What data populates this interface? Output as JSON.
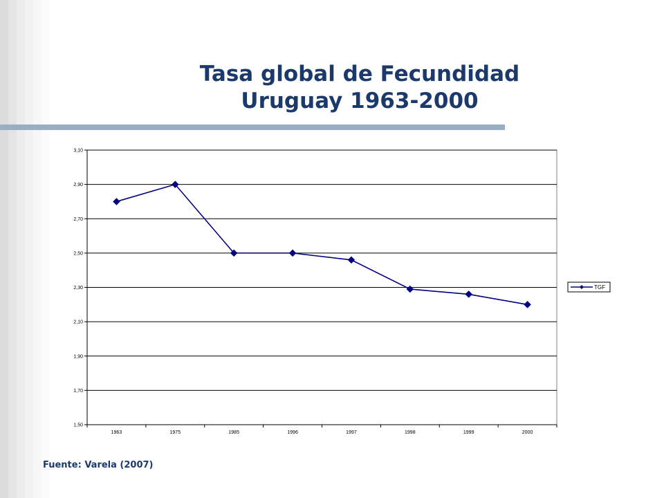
{
  "slide": {
    "title_line1": "Tasa global de Fecundidad",
    "title_line2": "Uruguay 1963-2000",
    "source": "Fuente: Varela (2007)"
  },
  "colors": {
    "title": "#1b3a6b",
    "rule": "#9aadc6",
    "series": "#000080",
    "grid": "#000000"
  },
  "chart_data": {
    "type": "line",
    "title": "",
    "xlabel": "",
    "ylabel": "",
    "categories": [
      "1963",
      "1975",
      "1985",
      "1996",
      "1997",
      "1998",
      "1999",
      "2000"
    ],
    "series": [
      {
        "name": "TGF",
        "values": [
          2.8,
          2.9,
          2.5,
          2.5,
          2.46,
          2.29,
          2.26,
          2.2
        ],
        "color": "#000080",
        "marker": "diamond"
      }
    ],
    "ylim": [
      1.5,
      3.1
    ],
    "yticks": [
      "1,50",
      "1,70",
      "1,90",
      "2,10",
      "2,30",
      "2,50",
      "2,70",
      "2,90",
      "3,10"
    ],
    "ytick_values": [
      1.5,
      1.7,
      1.9,
      2.1,
      2.3,
      2.5,
      2.7,
      2.9,
      3.1
    ],
    "grid": true,
    "legend": "right"
  }
}
